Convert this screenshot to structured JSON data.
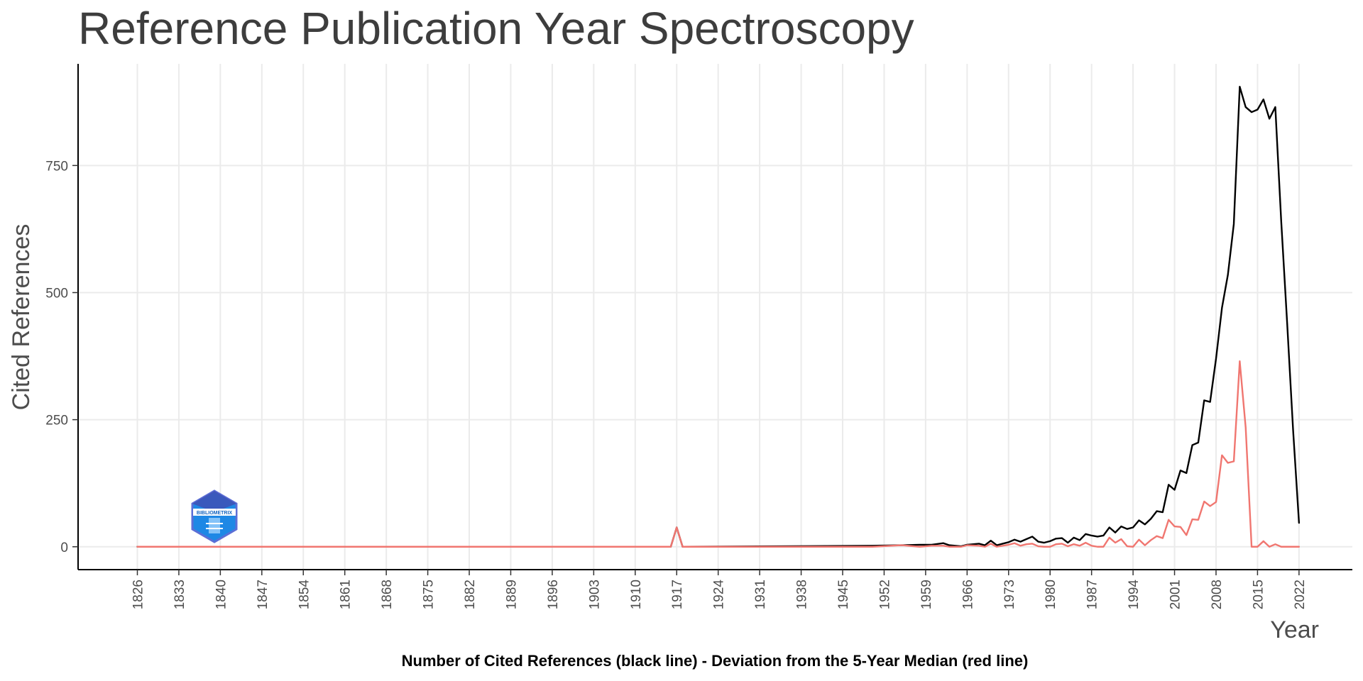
{
  "chart_data": {
    "type": "line",
    "title": "Reference Publication Year Spectroscopy",
    "xlabel": "Year",
    "ylabel": "Cited References",
    "caption": "Number of Cited References (black line) - Deviation from the 5-Year Median (red line)",
    "xlim": [
      1816,
      2031
    ],
    "ylim": [
      -45,
      950
    ],
    "x_ticks": [
      "1826",
      "1833",
      "1840",
      "1847",
      "1854",
      "1861",
      "1868",
      "1875",
      "1882",
      "1889",
      "1896",
      "1903",
      "1910",
      "1917",
      "1924",
      "1931",
      "1938",
      "1945",
      "1952",
      "1959",
      "1966",
      "1973",
      "1980",
      "1987",
      "1994",
      "2001",
      "2008",
      "2015",
      "2022"
    ],
    "y_ticks": [
      "0",
      "250",
      "500",
      "750"
    ],
    "grid": true,
    "colors": {
      "cited": "#000000",
      "deviation": "#f07670"
    },
    "logo_text": "BIBLIOMETRIX",
    "series": [
      {
        "key": "cited",
        "x": [
          1826,
          1916,
          1917,
          1918,
          1950,
          1955,
          1958,
          1960,
          1962,
          1963,
          1965,
          1966,
          1968,
          1969,
          1970,
          1971,
          1972,
          1973,
          1974,
          1975,
          1976,
          1977,
          1978,
          1979,
          1980,
          1981,
          1982,
          1983,
          1984,
          1985,
          1986,
          1987,
          1988,
          1989,
          1990,
          1991,
          1992,
          1993,
          1994,
          1995,
          1996,
          1997,
          1998,
          1999,
          2000,
          2001,
          2002,
          2003,
          2004,
          2005,
          2006,
          2007,
          2008,
          2009,
          2010,
          2011,
          2012,
          2013,
          2014,
          2015,
          2016,
          2017,
          2018,
          2019,
          2020,
          2021,
          2022
        ],
        "y": [
          0,
          0,
          38,
          0,
          2,
          3,
          4,
          4,
          7,
          3,
          1,
          4,
          6,
          3,
          12,
          3,
          6,
          9,
          14,
          10,
          15,
          20,
          10,
          8,
          11,
          16,
          17,
          8,
          18,
          13,
          25,
          22,
          20,
          22,
          38,
          28,
          40,
          35,
          38,
          52,
          44,
          55,
          70,
          68,
          122,
          112,
          150,
          145,
          200,
          205,
          288,
          285,
          370,
          470,
          535,
          635,
          905,
          865,
          855,
          860,
          880,
          842,
          865,
          640,
          440,
          230,
          47
        ]
      },
      {
        "key": "deviation",
        "x": [
          1826,
          1916,
          1917,
          1918,
          1950,
          1955,
          1958,
          1960,
          1962,
          1963,
          1965,
          1966,
          1968,
          1969,
          1970,
          1971,
          1972,
          1973,
          1974,
          1975,
          1976,
          1977,
          1978,
          1979,
          1980,
          1981,
          1982,
          1983,
          1984,
          1985,
          1986,
          1987,
          1988,
          1989,
          1990,
          1991,
          1992,
          1993,
          1994,
          1995,
          1996,
          1997,
          1998,
          1999,
          2000,
          2001,
          2002,
          2003,
          2004,
          2005,
          2006,
          2007,
          2008,
          2009,
          2010,
          2011,
          2012,
          2013,
          2014,
          2015,
          2016,
          2017,
          2018,
          2019,
          2020,
          2021,
          2022
        ],
        "y": [
          0,
          0,
          38,
          0,
          0,
          3,
          0,
          2,
          2,
          0,
          0,
          3,
          2,
          0,
          6,
          0,
          2,
          4,
          7,
          2,
          5,
          6,
          1,
          0,
          0,
          5,
          6,
          1,
          5,
          2,
          8,
          2,
          0,
          0,
          18,
          8,
          15,
          1,
          0,
          14,
          3,
          13,
          21,
          17,
          53,
          40,
          39,
          23,
          54,
          53,
          89,
          80,
          88,
          180,
          165,
          168,
          365,
          235,
          0,
          0,
          11,
          0,
          5,
          0,
          0,
          0,
          0
        ]
      }
    ]
  }
}
